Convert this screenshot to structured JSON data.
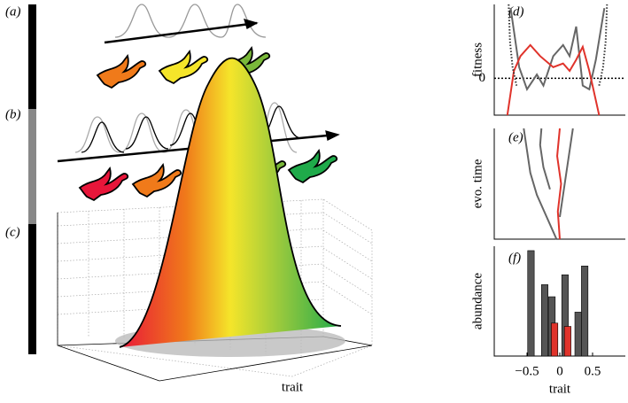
{
  "panel_labels": [
    "(a)",
    "(b)",
    "(c)",
    "(d)",
    "(e)",
    "(f)"
  ],
  "surface": {
    "xlabel": "trait"
  },
  "chart_data": [
    {
      "type": "line",
      "ylabel": "fitness",
      "xlim": [
        -1,
        1
      ],
      "ylim": [
        -1,
        2
      ],
      "yticks": [
        0
      ],
      "series": [
        {
          "color": "#666666",
          "x": [
            -0.75,
            -0.62,
            -0.5,
            -0.35,
            -0.25,
            -0.1,
            0.05,
            0.15,
            0.25,
            0.35,
            0.45,
            0.55,
            0.68
          ],
          "values": [
            1.9,
            0.3,
            -0.3,
            0.1,
            -0.2,
            0.6,
            0.9,
            0.6,
            1.4,
            -0.2,
            -0.3,
            0.5,
            1.9
          ]
        },
        {
          "color": "#e0332b",
          "x": [
            -0.8,
            -0.7,
            -0.6,
            -0.45,
            -0.3,
            -0.1,
            0.05,
            0.15,
            0.25,
            0.35,
            0.45,
            0.6
          ],
          "values": [
            -1,
            0.2,
            0.6,
            0.9,
            0.6,
            0.3,
            0.4,
            0.2,
            0.5,
            0.85,
            0.2,
            -1
          ]
        },
        {
          "color": "#333333",
          "x": [
            -0.78,
            -0.76,
            -0.72,
            -0.66
          ],
          "values": [
            2,
            1,
            0.3,
            -0.2
          ]
        },
        {
          "color": "#333333",
          "x": [
            0.6,
            0.66,
            0.7,
            0.72
          ],
          "values": [
            -0.2,
            0.3,
            1,
            2
          ]
        }
      ]
    },
    {
      "type": "line",
      "ylabel": "evo. time",
      "xlim": [
        -1,
        1
      ],
      "ylim": [
        0,
        1
      ],
      "series": [
        {
          "color": "#666666",
          "x": [
            -0.05,
            -0.2,
            -0.35,
            -0.45,
            -0.5,
            -0.55
          ],
          "values": [
            0,
            0.2,
            0.4,
            0.6,
            0.8,
            1
          ]
        },
        {
          "color": "#666666",
          "x": [
            0,
            0.05,
            0.1,
            0.15,
            0.2
          ],
          "values": [
            0.2,
            0.4,
            0.6,
            0.8,
            1
          ]
        },
        {
          "color": "#666666",
          "x": [
            -0.15,
            -0.25,
            -0.3,
            -0.28
          ],
          "values": [
            0.45,
            0.65,
            0.85,
            1
          ]
        },
        {
          "color": "#e0332b",
          "x": [
            0,
            -0.03,
            0.02,
            -0.04,
            0
          ],
          "values": [
            0,
            0.25,
            0.5,
            0.75,
            1
          ]
        }
      ]
    },
    {
      "type": "bar",
      "ylabel": "abundance",
      "xlabel": "trait",
      "xlim": [
        -1,
        1
      ],
      "ylim": [
        0,
        1
      ],
      "xticks": [
        {
          "value": -0.5,
          "label": "−0.5"
        },
        0,
        0.5
      ],
      "series": [
        {
          "color": "#555555",
          "x": [
            -0.44,
            -0.23,
            -0.12,
            0.08,
            0.28,
            0.38
          ],
          "values": [
            0.96,
            0.65,
            0.54,
            0.74,
            0.4,
            0.82
          ]
        },
        {
          "color": "#e0332b",
          "x": [
            -0.08,
            0.12
          ],
          "values": [
            0.3,
            0.27
          ]
        }
      ]
    }
  ]
}
